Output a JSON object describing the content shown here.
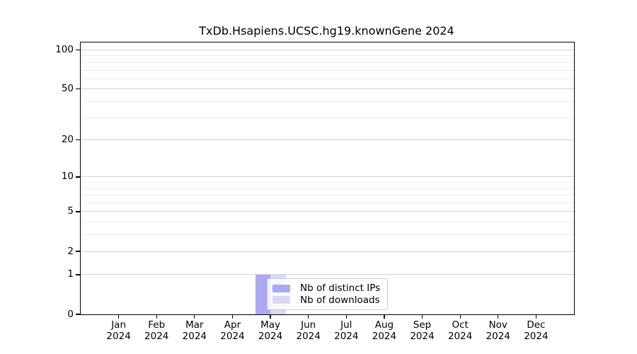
{
  "chart_data": {
    "type": "bar",
    "title": "TxDb.Hsapiens.UCSC.hg19.knownGene 2024",
    "categories": [
      "Jan",
      "Feb",
      "Mar",
      "Apr",
      "May",
      "Jun",
      "Jul",
      "Aug",
      "Sep",
      "Oct",
      "Nov",
      "Dec"
    ],
    "category_year": "2024",
    "series": [
      {
        "name": "Nb of distinct IPs",
        "color": "#aaaaf2",
        "values": [
          0,
          0,
          0,
          0,
          1,
          0,
          0,
          0,
          0,
          0,
          0,
          0
        ]
      },
      {
        "name": "Nb of downloads",
        "color": "#d9d9f7",
        "values": [
          0,
          0,
          0,
          0,
          1,
          0,
          0,
          0,
          0,
          0,
          0,
          0
        ]
      }
    ],
    "yscale": "log10(value+1)",
    "ylim": [
      0,
      114
    ],
    "yticks_major": [
      0,
      1,
      2,
      5,
      10,
      20,
      50,
      100
    ],
    "yticks_minor": [
      3,
      4,
      6,
      7,
      8,
      9,
      30,
      40,
      60,
      70,
      80,
      90
    ],
    "grid": "horizontal",
    "legend_position": "inside-bottom-center"
  },
  "colors": {
    "frame": "#000000",
    "grid_major": "#d2d2d2",
    "grid_minor": "#ededed",
    "legend_border": "#cccccc",
    "background": "#ffffff"
  }
}
